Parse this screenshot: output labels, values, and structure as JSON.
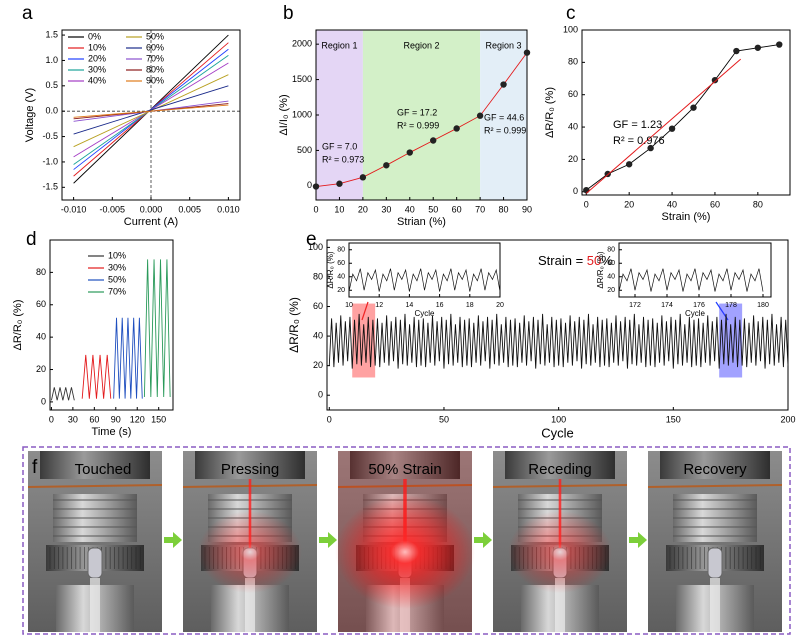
{
  "chart_data": [
    {
      "type": "line",
      "panel": "a",
      "xlabel": "Current (A)",
      "ylabel": "Voltage (V)",
      "x": [
        -0.01,
        0.01
      ],
      "xlim": [
        -0.0115,
        0.0115
      ],
      "ylim": [
        -1.75,
        1.6
      ],
      "zero_lines": true,
      "xticks": [
        {
          "value": -0.01,
          "label": "-0.010"
        },
        {
          "value": -0.005,
          "label": "-0.005"
        },
        {
          "value": 0,
          "label": "0.000"
        },
        {
          "value": 0.005,
          "label": "0.005"
        },
        {
          "value": 0.01,
          "label": "0.010"
        }
      ],
      "yticks": [
        -1.5,
        {
          "value": -1,
          "label": "-1.0"
        },
        -0.5,
        {
          "value": 0,
          "label": "0.0"
        },
        0.5,
        {
          "value": 1,
          "label": "1.0"
        },
        1.5
      ],
      "legend": true,
      "series": [
        {
          "name": "0%",
          "color": "#000000",
          "values": [
            -1.42,
            1.5
          ]
        },
        {
          "name": "10%",
          "color": "#e31a1c",
          "values": [
            -1.28,
            1.35
          ]
        },
        {
          "name": "20%",
          "color": "#1f3fff",
          "values": [
            -1.15,
            1.22
          ]
        },
        {
          "name": "30%",
          "color": "#1aa39a",
          "values": [
            -1.05,
            1.1
          ]
        },
        {
          "name": "40%",
          "color": "#a33bc4",
          "values": [
            -0.9,
            0.95
          ]
        },
        {
          "name": "50%",
          "color": "#b8a020",
          "values": [
            -0.7,
            0.72
          ]
        },
        {
          "name": "60%",
          "color": "#1a2a8a",
          "values": [
            -0.45,
            0.5
          ]
        },
        {
          "name": "70%",
          "color": "#8a4fcf",
          "values": [
            -0.2,
            0.2
          ]
        },
        {
          "name": "80%",
          "color": "#8b1a1a",
          "values": [
            -0.15,
            0.15
          ]
        },
        {
          "name": "90%",
          "color": "#e07b1a",
          "values": [
            -0.12,
            0.12
          ]
        }
      ]
    },
    {
      "type": "line",
      "panel": "b",
      "xlabel": "Strian (%)",
      "ylabel": "ΔI/I₀ (%)",
      "x": [
        0,
        10,
        20,
        30,
        40,
        50,
        60,
        70,
        80,
        90
      ],
      "xlim": [
        0,
        90
      ],
      "ylim": [
        -200,
        2200
      ],
      "xticks": [
        0,
        10,
        20,
        30,
        40,
        50,
        60,
        70,
        80,
        90
      ],
      "yticks": [
        0,
        500,
        1000,
        1500,
        2000
      ],
      "markers": true,
      "marker_color": "#222222",
      "regions": [
        {
          "label": "Region 1",
          "range": [
            0,
            20
          ],
          "color": "#e4d6f5"
        },
        {
          "label": "Region 2",
          "range": [
            20,
            70
          ],
          "color": "#d3f0c8"
        },
        {
          "label": "Region 3",
          "range": [
            70,
            90
          ],
          "color": "#e3eef7"
        }
      ],
      "annotations": [
        "GF = 7.0",
        "R² = 0.973",
        "GF = 17.2",
        "R² = 0.999",
        "GF = 44.6",
        "R² = 0.999"
      ],
      "annotation_color": "#e31a1c",
      "series": [
        {
          "color": "#e31a1c",
          "values": [
            -10,
            30,
            120,
            290,
            470,
            640,
            810,
            990,
            1430,
            1880
          ]
        }
      ]
    },
    {
      "type": "line",
      "panel": "c",
      "xlabel": "Strain (%)",
      "ylabel": "ΔR/R₀ (%)",
      "x": [
        0,
        10,
        20,
        30,
        40,
        50,
        60,
        70,
        80,
        90
      ],
      "xlim": [
        -2,
        95
      ],
      "ylim": [
        -2,
        100
      ],
      "xticks": [
        0,
        20,
        40,
        60,
        80
      ],
      "yticks": [
        0,
        20,
        40,
        60,
        80,
        100
      ],
      "markers": true,
      "marker_color": "#222222",
      "fit": {
        "x": [
          0,
          72
        ],
        "values": [
          -1,
          82
        ],
        "color": "#e31a1c"
      },
      "annotations": [
        "GF = 1.23",
        "R² = 0.976"
      ],
      "annotation_color": "#e31a1c",
      "series": [
        {
          "color": "#000000",
          "values": [
            1,
            11,
            17,
            27,
            39,
            52,
            69,
            87,
            89,
            91
          ]
        }
      ]
    },
    {
      "type": "line",
      "panel": "d",
      "xlabel": "Time (s)",
      "ylabel": "ΔR/R₀ (%)",
      "xlim": [
        -2,
        170
      ],
      "ylim": [
        -5,
        100
      ],
      "xticks": [
        0,
        30,
        60,
        90,
        120,
        150
      ],
      "yticks": [
        0,
        20,
        40,
        60,
        80
      ],
      "legend": true,
      "series": [
        {
          "name": "10%",
          "color": "#333333",
          "x": [
            0,
            4,
            8,
            12,
            16,
            20,
            24,
            28,
            32
          ],
          "values": [
            1,
            9,
            1,
            9,
            1,
            9,
            1,
            9,
            1
          ]
        },
        {
          "name": "30%",
          "color": "#e31a1c",
          "x": [
            43,
            48,
            53,
            58,
            63,
            68,
            73,
            78,
            83
          ],
          "values": [
            2,
            29,
            2,
            29,
            2,
            29,
            2,
            29,
            2
          ]
        },
        {
          "name": "50%",
          "color": "#1f4fbf",
          "x": [
            87,
            91,
            95,
            99,
            103,
            107,
            111,
            115,
            119,
            123,
            127
          ],
          "values": [
            2,
            52,
            2,
            52,
            2,
            52,
            2,
            52,
            2,
            52,
            2
          ]
        },
        {
          "name": "70%",
          "color": "#2a9a5a",
          "x": [
            130,
            134.5,
            139,
            143.5,
            148,
            152.5,
            157,
            161.5,
            166
          ],
          "values": [
            3,
            88,
            3,
            88,
            3,
            88,
            3,
            88,
            3
          ]
        }
      ]
    },
    {
      "type": "line",
      "panel": "e",
      "xlabel": "Cycle",
      "ylabel": "ΔR/R₀ (%)",
      "xlim": [
        -1,
        200
      ],
      "ylim": [
        -10,
        105
      ],
      "xticks": [
        0,
        50,
        100,
        150,
        200
      ],
      "yticks": [
        0,
        20,
        40,
        60,
        80,
        100
      ],
      "annotation_parts": [
        "Strain = ",
        "50",
        "%"
      ],
      "annotation_part_colors": [
        "#000000",
        "#e31a1c",
        "#000000"
      ],
      "highlights": [
        {
          "range": [
            10,
            20
          ],
          "color": "#ff3030"
        },
        {
          "range": [
            170,
            180
          ],
          "color": "#3030ff"
        }
      ],
      "x": [
        0,
        1,
        2,
        3,
        4,
        5,
        6,
        7,
        8,
        9,
        10,
        11,
        12,
        13,
        14,
        15,
        16,
        17,
        18,
        19,
        20,
        21,
        22,
        23,
        24,
        25,
        26,
        27,
        28,
        29,
        30,
        31,
        32,
        33,
        34,
        35,
        36,
        37,
        38,
        39,
        40,
        41,
        42,
        43,
        44,
        45,
        46,
        47,
        48,
        49,
        50,
        51,
        52,
        53,
        54,
        55,
        56,
        57,
        58,
        59,
        60,
        61,
        62,
        63,
        64,
        65,
        66,
        67,
        68,
        69,
        70,
        71,
        72,
        73,
        74,
        75,
        76,
        77,
        78,
        79,
        80,
        81,
        82,
        83,
        84,
        85,
        86,
        87,
        88,
        89,
        90,
        91,
        92,
        93,
        94,
        95,
        96,
        97,
        98,
        99,
        100,
        101,
        102,
        103,
        104,
        105,
        106,
        107,
        108,
        109,
        110,
        111,
        112,
        113,
        114,
        115,
        116,
        117,
        118,
        119,
        120,
        121,
        122,
        123,
        124,
        125,
        126,
        127,
        128,
        129,
        130,
        131,
        132,
        133,
        134,
        135,
        136,
        137,
        138,
        139,
        140,
        141,
        142,
        143,
        144,
        145,
        146,
        147,
        148,
        149,
        150,
        151,
        152,
        153,
        154,
        155,
        156,
        157,
        158,
        159,
        160,
        161,
        162,
        163,
        164,
        165,
        166,
        167,
        168,
        169,
        170,
        171,
        172,
        173,
        174,
        175,
        176,
        177,
        178,
        179,
        180,
        181,
        182,
        183,
        184,
        185,
        186,
        187,
        188,
        189,
        190,
        191,
        192,
        193,
        194,
        195,
        196,
        197,
        198,
        199,
        200
      ],
      "series": [
        {
          "color": "#111111",
          "values": [
            20,
            52,
            19,
            49,
            22,
            54,
            20,
            50,
            23,
            53,
            18,
            51,
            21,
            55,
            20,
            48,
            22,
            53,
            19,
            51,
            20,
            52,
            19,
            49,
            22,
            54,
            20,
            50,
            23,
            53,
            18,
            51,
            21,
            55,
            20,
            48,
            22,
            53,
            19,
            51,
            20,
            52,
            19,
            49,
            22,
            54,
            20,
            50,
            23,
            53,
            18,
            51,
            21,
            55,
            20,
            48,
            22,
            53,
            19,
            51,
            20,
            52,
            19,
            49,
            22,
            54,
            20,
            50,
            23,
            53,
            18,
            51,
            21,
            55,
            20,
            48,
            22,
            53,
            19,
            51,
            20,
            52,
            19,
            49,
            22,
            54,
            20,
            50,
            23,
            53,
            18,
            51,
            21,
            55,
            20,
            48,
            22,
            53,
            19,
            51,
            20,
            52,
            19,
            49,
            22,
            54,
            20,
            50,
            23,
            53,
            18,
            51,
            21,
            55,
            20,
            48,
            22,
            53,
            19,
            51,
            20,
            52,
            19,
            49,
            22,
            54,
            20,
            50,
            23,
            53,
            18,
            51,
            21,
            55,
            20,
            48,
            22,
            53,
            19,
            51,
            20,
            52,
            19,
            49,
            22,
            54,
            20,
            50,
            23,
            53,
            18,
            51,
            21,
            55,
            20,
            48,
            22,
            53,
            19,
            51,
            20,
            52,
            19,
            49,
            22,
            54,
            20,
            50,
            23,
            53,
            18,
            51,
            21,
            55,
            20,
            48,
            22,
            53,
            19,
            51,
            20,
            52,
            19,
            49,
            22,
            54,
            20,
            50,
            23,
            53,
            18,
            51,
            21,
            55,
            20,
            48,
            22,
            53,
            19,
            51,
            20
          ]
        }
      ]
    },
    {
      "type": "line",
      "inset": true,
      "xlabel": "Cycle",
      "ylabel": "ΔR/R₀ (%)",
      "xlim": [
        10,
        20
      ],
      "ylim": [
        10,
        90
      ],
      "xticks": [
        10,
        12,
        14,
        16,
        18,
        20
      ],
      "yticks": [
        20,
        40,
        60,
        80
      ],
      "x": [
        10,
        10.25,
        10.5,
        10.75,
        11,
        11.25,
        11.5,
        11.75,
        12,
        12.25,
        12.5,
        12.75,
        13,
        13.25,
        13.5,
        13.75,
        14,
        14.25,
        14.5,
        14.75,
        15,
        15.25,
        15.5,
        15.75,
        16,
        16.25,
        16.5,
        16.75,
        17,
        17.25,
        17.5,
        17.75,
        18,
        18.25,
        18.5,
        18.75,
        19,
        19.25,
        19.5,
        19.75,
        20
      ],
      "series": [
        {
          "color": "#111111",
          "values": [
            18,
            44,
            34,
            52,
            20,
            46,
            36,
            50,
            18,
            44,
            34,
            52,
            20,
            46,
            36,
            50,
            18,
            44,
            34,
            52,
            20,
            46,
            36,
            50,
            18,
            44,
            34,
            52,
            20,
            46,
            36,
            50,
            18,
            44,
            34,
            52,
            20,
            46,
            36,
            50,
            18
          ]
        }
      ]
    },
    {
      "type": "line",
      "inset": true,
      "xlabel": "Cycle",
      "ylabel": "ΔR/R₀ (%)",
      "xlim": [
        171,
        180.5
      ],
      "ylim": [
        10,
        90
      ],
      "xticks": [
        172,
        174,
        176,
        178,
        180
      ],
      "yticks": [
        20,
        40,
        60,
        80
      ],
      "x": [
        171,
        171.25,
        171.5,
        171.75,
        172,
        172.25,
        172.5,
        172.75,
        173,
        173.25,
        173.5,
        173.75,
        174,
        174.25,
        174.5,
        174.75,
        175,
        175.25,
        175.5,
        175.75,
        176,
        176.25,
        176.5,
        176.75,
        177,
        177.25,
        177.5,
        177.75,
        178,
        178.25,
        178.5,
        178.75,
        179,
        179.25,
        179.5,
        179.75,
        180
      ],
      "series": [
        {
          "color": "#111111",
          "values": [
            18,
            44,
            34,
            52,
            20,
            46,
            36,
            50,
            18,
            44,
            34,
            52,
            20,
            46,
            36,
            50,
            18,
            44,
            34,
            52,
            20,
            46,
            36,
            50,
            18,
            44,
            34,
            52,
            20,
            46,
            36,
            50,
            18,
            44,
            34,
            52,
            18
          ]
        }
      ]
    }
  ],
  "photo_panel": {
    "panel": "f",
    "frames": [
      "Touched",
      "Pressing",
      "50% Strain",
      "Receding",
      "Recovery"
    ]
  }
}
